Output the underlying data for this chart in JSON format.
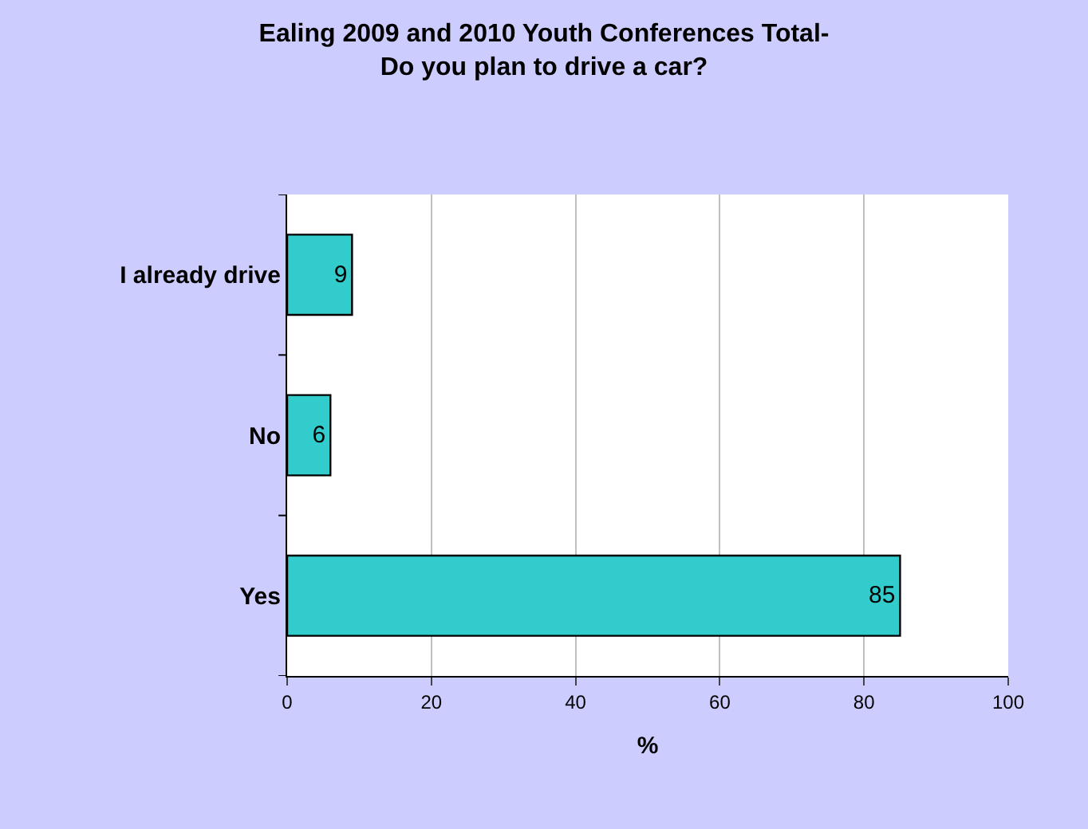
{
  "chart_data": {
    "type": "bar",
    "orientation": "horizontal",
    "title": "Ealing 2009 and 2010 Youth Conferences Total- Do you plan to drive a car?",
    "categories": [
      "I already drive",
      "No",
      "Yes"
    ],
    "values": [
      9,
      6,
      85
    ],
    "color": "#33cccc",
    "xlabel": "%",
    "xlim": [
      0,
      100
    ],
    "xticks": [
      0,
      20,
      40,
      60,
      80,
      100
    ],
    "grid": "x",
    "legend": false,
    "data_labels": true
  }
}
